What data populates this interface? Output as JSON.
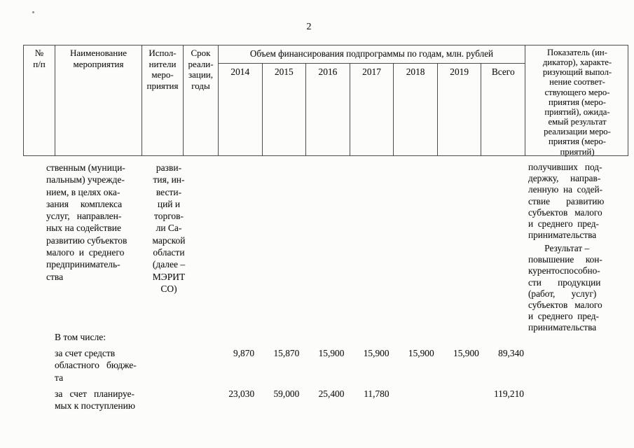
{
  "colors": {
    "ink": "#181818",
    "border": "#4d4d4b",
    "paper": "#fcfcfb"
  },
  "page": {
    "number": "2"
  },
  "table": {
    "header": {
      "col_num": "№\nп/п",
      "col_name": "Наименование\nмероприятия",
      "col_executors": "Испол-\nнители\nмеро-\nприятия",
      "col_term": "Срок\nреали-\nзации,\nгоды",
      "financing_title": "Объем финансирования подпрограммы по годам, млн. рублей",
      "years": [
        "2014",
        "2015",
        "2016",
        "2017",
        "2018",
        "2019",
        "Всего"
      ],
      "col_indicator": "Показатель (ин-\nдикатор), характе-\nризующий выпол-\nнение соответ-\nствующего меро-\nприятия (меро-\nприятий), ожида-\nемый результат\nреализации меро-\nприятия (меро-\nприятий)"
    },
    "body": {
      "name_continued": "ственным (муници-\nпальным) учрежде-\nнием, в целях ока-\nзания     комплекса\nуслуг,   направлен-\nных на содействие\nразвитию субъектов\nмалого  и  среднего\nпредприниматель-\nства",
      "executors_continued": "разви-\nтия, ин-\nвести-\nций и\nторгов-\nли Са-\nмарской\nобласти\n(далее –\nМЭРИТ\nСО)",
      "indicator_continued_p1": "получивших   под-\nдержку,     направ-\nленную  на  содей-\nствие       развитию\nсубъектов   малого\nи  среднего  пред-\nпринимательства",
      "indicator_continued_p2": "       Результат –\nповышение     кон-\nкурентоспособно-\nсти       продукции\n(работ,       услуг)\nсубъектов   малого\nи  среднего  пред-\nпринимательства",
      "including_label": "В том числе:",
      "rows": [
        {
          "label": "за счет средств\nобластного   бюдже-\nта",
          "values": [
            "9,870",
            "15,870",
            "15,900",
            "15,900",
            "15,900",
            "15,900",
            "89,340"
          ]
        },
        {
          "label": "за   счет   планируе-\nмых к поступлению",
          "values": [
            "23,030",
            "59,000",
            "25,400",
            "11,780",
            "",
            "",
            "119,210"
          ]
        }
      ]
    }
  }
}
